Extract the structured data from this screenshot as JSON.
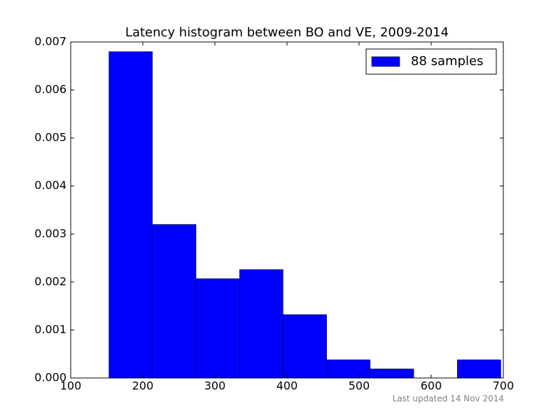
{
  "chart_data": {
    "type": "histogram",
    "title": "Latency histogram between BO and VE, 2009-2014",
    "annotation": "Last updated 14 Nov 2014",
    "bins": [
      153,
      213.4,
      273.8,
      334.2,
      394.6,
      455,
      515.4,
      575.8,
      636.2,
      696.6
    ],
    "series": [
      {
        "name": "88 samples",
        "color": "#0000ff",
        "values": [
          0.0068,
          0.0032,
          0.00207,
          0.00226,
          0.00132,
          0.00038,
          0.00019,
          0,
          0.00038
        ]
      }
    ],
    "xlim": [
      100,
      700
    ],
    "xticks": [
      100,
      200,
      300,
      400,
      500,
      600,
      700
    ],
    "ylim": [
      0,
      0.007
    ],
    "yticks": [
      {
        "value": 0,
        "label": "0.000"
      },
      {
        "value": 0.001,
        "label": "0.001"
      },
      {
        "value": 0.002,
        "label": "0.002"
      },
      {
        "value": 0.003,
        "label": "0.003"
      },
      {
        "value": 0.004,
        "label": "0.004"
      },
      {
        "value": 0.005,
        "label": "0.005"
      },
      {
        "value": 0.006,
        "label": "0.006"
      },
      {
        "value": 0.007,
        "label": "0.007"
      }
    ],
    "legend": "upper right",
    "grid": false
  }
}
